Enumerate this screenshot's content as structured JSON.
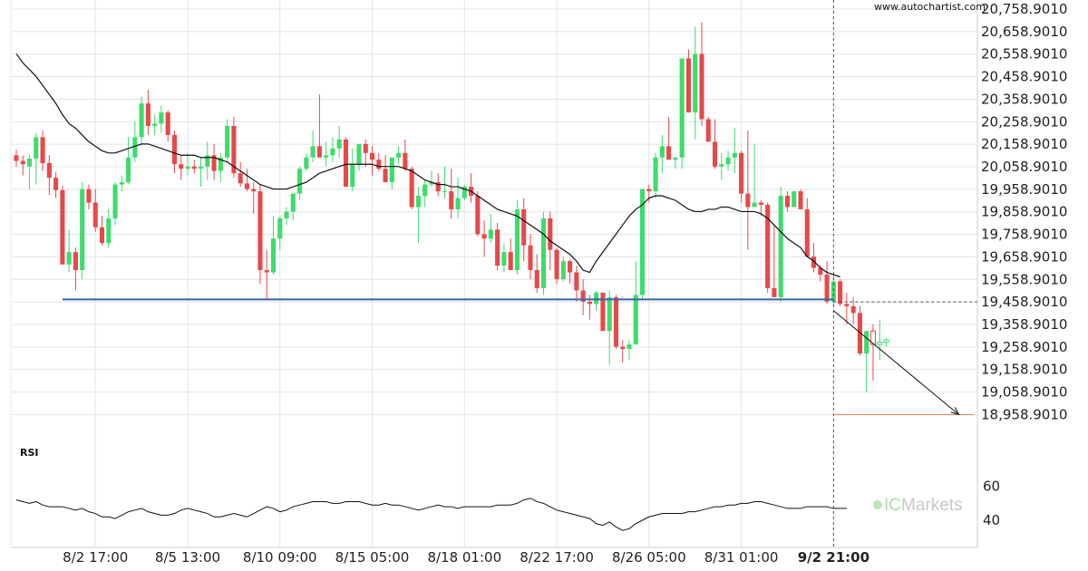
{
  "watermark": "www.autochartist.com",
  "brand": {
    "prefix": "IC",
    "name": "Markets",
    "accent_color": "#8fd98a"
  },
  "colors": {
    "bull": "#3ddc6c",
    "bear": "#e8484a",
    "support_line": "#3a64a8",
    "target_line": "#e07b39",
    "moving_average": "#111111",
    "rsi": "#111111",
    "grid": "#e4e4e4"
  },
  "chart_data": [
    {
      "type": "candlestick",
      "ylim": [
        18884,
        20775
      ],
      "yticks": [
        "20,758.9010",
        "20,658.9010",
        "20,558.9010",
        "20,458.9010",
        "20,358.9010",
        "20,258.9010",
        "20,158.9010",
        "20,058.9010",
        "19,958.9010",
        "19,858.9010",
        "19,758.9010",
        "19,658.9010",
        "19,558.9010",
        "19,458.9010",
        "19,358.9010",
        "19,258.9010",
        "19,158.9010",
        "19,058.9010",
        "18,958.9010"
      ],
      "ytick_values": [
        20758.901,
        20658.901,
        20558.901,
        20458.901,
        20358.901,
        20258.901,
        20158.901,
        20058.901,
        19958.901,
        19858.901,
        19758.901,
        19658.901,
        19558.901,
        19458.901,
        19358.901,
        19258.901,
        19158.901,
        19058.901,
        18958.901
      ],
      "xticks": [
        {
          "label": "8/2 17:00",
          "index": 12,
          "bold": false
        },
        {
          "label": "8/5 13:00",
          "index": 26,
          "bold": false
        },
        {
          "label": "8/10 09:00",
          "index": 40,
          "bold": false
        },
        {
          "label": "8/15 05:00",
          "index": 54,
          "bold": false
        },
        {
          "label": "8/18 01:00",
          "index": 68,
          "bold": false
        },
        {
          "label": "8/22 17:00",
          "index": 82,
          "bold": false
        },
        {
          "label": "8/26 05:00",
          "index": 96,
          "bold": false
        },
        {
          "label": "8/31 01:00",
          "index": 110,
          "bold": false
        },
        {
          "label": "9/2 21:00",
          "index": 124,
          "bold": true
        }
      ],
      "index_range": [
        0,
        145
      ],
      "current_index": 124,
      "candles_ohlc": [
        [
          20110,
          20135,
          20060,
          20085
        ],
        [
          20085,
          20110,
          20020,
          20070
        ],
        [
          20060,
          20110,
          19960,
          20095
        ],
        [
          20095,
          20210,
          19980,
          20190
        ],
        [
          20190,
          20220,
          20040,
          20075
        ],
        [
          20075,
          20110,
          19935,
          20010
        ],
        [
          20010,
          20035,
          19920,
          19955
        ],
        [
          19955,
          19975,
          19630,
          19625
        ],
        [
          19625,
          19780,
          19590,
          19680
        ],
        [
          19680,
          19700,
          19510,
          19600
        ],
        [
          19600,
          19990,
          19560,
          19960
        ],
        [
          19960,
          19980,
          19870,
          19900
        ],
        [
          19900,
          19960,
          19770,
          19790
        ],
        [
          19790,
          19840,
          19710,
          19720
        ],
        [
          19720,
          19870,
          19700,
          19830
        ],
        [
          19830,
          19990,
          19800,
          19980
        ],
        [
          19980,
          20020,
          19950,
          19990
        ],
        [
          19990,
          20190,
          19980,
          20100
        ],
        [
          20100,
          20260,
          20080,
          20190
        ],
        [
          20190,
          20370,
          20150,
          20340
        ],
        [
          20340,
          20400,
          20200,
          20240
        ],
        [
          20240,
          20290,
          20200,
          20250
        ],
        [
          20250,
          20330,
          20210,
          20300
        ],
        [
          20300,
          20310,
          20170,
          20200
        ],
        [
          20200,
          20220,
          20030,
          20070
        ],
        [
          20070,
          20110,
          20000,
          20050
        ],
        [
          20050,
          20120,
          20020,
          20060
        ],
        [
          20060,
          20090,
          20030,
          20050
        ],
        [
          20050,
          20100,
          19970,
          20060
        ],
        [
          20060,
          20170,
          20000,
          20110
        ],
        [
          20110,
          20160,
          20000,
          20040
        ],
        [
          20040,
          20120,
          19990,
          20100
        ],
        [
          20100,
          20270,
          20080,
          20240
        ],
        [
          20240,
          20280,
          20010,
          20030
        ],
        [
          20030,
          20080,
          19970,
          19985
        ],
        [
          19985,
          20050,
          19950,
          19960
        ],
        [
          19960,
          19990,
          19850,
          19950
        ],
        [
          19950,
          19980,
          19540,
          19600
        ],
        [
          19600,
          19690,
          19470,
          19590
        ],
        [
          19590,
          19840,
          19580,
          19740
        ],
        [
          19740,
          19840,
          19690,
          19830
        ],
        [
          19830,
          19880,
          19800,
          19860
        ],
        [
          19860,
          19940,
          19820,
          19940
        ],
        [
          19940,
          20060,
          19910,
          20050
        ],
        [
          20050,
          20120,
          20040,
          20100
        ],
        [
          20100,
          20220,
          20080,
          20150
        ],
        [
          20150,
          20380,
          20110,
          20100
        ],
        [
          20100,
          20170,
          20060,
          20110
        ],
        [
          20110,
          20190,
          20080,
          20140
        ],
        [
          20140,
          20240,
          20100,
          20180
        ],
        [
          20180,
          20190,
          20000,
          19970
        ],
        [
          19970,
          20140,
          19950,
          20070
        ],
        [
          20070,
          20150,
          20040,
          20160
        ],
        [
          20160,
          20180,
          20060,
          20120
        ],
        [
          20120,
          20150,
          20020,
          20090
        ],
        [
          20090,
          20120,
          20040,
          20050
        ],
        [
          20050,
          20110,
          19990,
          19990
        ],
        [
          19990,
          20100,
          19960,
          20100
        ],
        [
          20100,
          20150,
          20070,
          20120
        ],
        [
          20120,
          20180,
          20040,
          20050
        ],
        [
          20050,
          20060,
          19870,
          19880
        ],
        [
          19880,
          19970,
          19720,
          19930
        ],
        [
          19930,
          20000,
          19880,
          19980
        ],
        [
          19980,
          20040,
          19970,
          19990
        ],
        [
          19990,
          20030,
          19930,
          19950
        ],
        [
          19950,
          20060,
          19920,
          19950
        ],
        [
          19950,
          20050,
          19830,
          19870
        ],
        [
          19870,
          20010,
          19830,
          19920
        ],
        [
          19920,
          19980,
          19910,
          19970
        ],
        [
          19970,
          20030,
          19900,
          19930
        ],
        [
          19930,
          19950,
          19750,
          19760
        ],
        [
          19760,
          19820,
          19660,
          19740
        ],
        [
          19740,
          19850,
          19720,
          19780
        ],
        [
          19780,
          19810,
          19600,
          19620
        ],
        [
          19620,
          19720,
          19590,
          19680
        ],
        [
          19680,
          19740,
          19600,
          19600
        ],
        [
          19600,
          19910,
          19580,
          19870
        ],
        [
          19870,
          19920,
          19640,
          19710
        ],
        [
          19710,
          19760,
          19560,
          19600
        ],
        [
          19600,
          19670,
          19500,
          19520
        ],
        [
          19520,
          19860,
          19490,
          19830
        ],
        [
          19830,
          19860,
          19600,
          19690
        ],
        [
          19690,
          19700,
          19540,
          19560
        ],
        [
          19560,
          19660,
          19550,
          19640
        ],
        [
          19640,
          19650,
          19540,
          19590
        ],
        [
          19590,
          19620,
          19460,
          19510
        ],
        [
          19510,
          19560,
          19400,
          19460
        ],
        [
          19460,
          19490,
          19380,
          19450
        ],
        [
          19450,
          19510,
          19420,
          19500
        ],
        [
          19500,
          19500,
          19330,
          19330
        ],
        [
          19330,
          19510,
          19180,
          19480
        ],
        [
          19480,
          19490,
          19250,
          19260
        ],
        [
          19260,
          19290,
          19190,
          19250
        ],
        [
          19250,
          19290,
          19200,
          19270
        ],
        [
          19270,
          19640,
          19460,
          19490
        ],
        [
          19490,
          19960,
          19470,
          19960
        ],
        [
          19960,
          19980,
          19900,
          19950
        ],
        [
          19950,
          20120,
          19920,
          20100
        ],
        [
          20100,
          20200,
          20030,
          20150
        ],
        [
          20150,
          20280,
          20100,
          20090
        ],
        [
          20090,
          20100,
          20050,
          20100
        ],
        [
          20100,
          20340,
          20050,
          20540
        ],
        [
          20540,
          20580,
          20300,
          20300
        ],
        [
          20300,
          20680,
          20180,
          20560
        ],
        [
          20560,
          20700,
          20240,
          20270
        ],
        [
          20270,
          20280,
          20170,
          20170
        ],
        [
          20170,
          20270,
          20050,
          20060
        ],
        [
          20060,
          20120,
          20000,
          20070
        ],
        [
          20070,
          20130,
          20040,
          20100
        ],
        [
          20100,
          20230,
          20030,
          20120
        ],
        [
          20120,
          20130,
          19900,
          19940
        ],
        [
          19940,
          20220,
          19690,
          19880
        ],
        [
          19880,
          20160,
          19890,
          19900
        ],
        [
          19900,
          19910,
          19840,
          19890
        ],
        [
          19890,
          19900,
          19500,
          19520
        ],
        [
          19520,
          19800,
          19500,
          19480
        ],
        [
          19480,
          19970,
          19460,
          19930
        ],
        [
          19930,
          19950,
          19860,
          19880
        ],
        [
          19880,
          19950,
          19880,
          19950
        ],
        [
          19950,
          19960,
          19870,
          19870
        ],
        [
          19870,
          19920,
          19660,
          19660
        ],
        [
          19660,
          19720,
          19590,
          19610
        ],
        [
          19610,
          19620,
          19550,
          19580
        ],
        [
          19580,
          19640,
          19450,
          19460
        ],
        [
          19460,
          19580,
          19440,
          19550
        ],
        [
          19550,
          19560,
          19440,
          19450
        ],
        [
          19450,
          19500,
          19360,
          19440
        ],
        [
          19440,
          19480,
          19360,
          19410
        ],
        [
          19410,
          19440,
          19220,
          19230
        ],
        [
          19230,
          19330,
          19060,
          19330
        ],
        [
          19330,
          19360,
          19110,
          19270
        ],
        [
          19270,
          19380,
          19200,
          19280
        ],
        [
          19280,
          19300,
          19260,
          19290
        ]
      ],
      "moving_average": [
        20560,
        20520,
        20490,
        20460,
        20420,
        20380,
        20340,
        20290,
        20250,
        20230,
        20200,
        20170,
        20150,
        20130,
        20120,
        20120,
        20130,
        20140,
        20150,
        20160,
        20160,
        20150,
        20140,
        20130,
        20120,
        20110,
        20110,
        20110,
        20100,
        20100,
        20100,
        20090,
        20080,
        20060,
        20040,
        20020,
        20000,
        19980,
        19970,
        19960,
        19960,
        19960,
        19970,
        19980,
        19990,
        20010,
        20030,
        20040,
        20050,
        20060,
        20070,
        20070,
        20070,
        20070,
        20070,
        20060,
        20060,
        20060,
        20060,
        20050,
        20040,
        20020,
        20000,
        19990,
        19980,
        19980,
        19970,
        19970,
        19960,
        19950,
        19930,
        19910,
        19890,
        19870,
        19860,
        19850,
        19840,
        19820,
        19800,
        19780,
        19760,
        19730,
        19710,
        19690,
        19670,
        19640,
        19600,
        19590,
        19640,
        19680,
        19720,
        19760,
        19800,
        19840,
        19870,
        19890,
        19920,
        19930,
        19930,
        19920,
        19910,
        19890,
        19870,
        19860,
        19860,
        19870,
        19870,
        19880,
        19880,
        19870,
        19860,
        19860,
        19860,
        19850,
        19830,
        19800,
        19770,
        19740,
        19720,
        19700,
        19660,
        19640,
        19610,
        19590,
        19580,
        19570
      ],
      "ma_start_index": 0,
      "support_level": 19470,
      "support_range": [
        7,
        124
      ],
      "target_level": 18958.9,
      "target_range": [
        124,
        145
      ],
      "forecast_line": [
        [
          124,
          19420
        ],
        [
          143,
          18958.9
        ]
      ],
      "current_price": 19458.9
    },
    {
      "type": "line",
      "title": "RSI",
      "yticks": [
        60,
        40
      ],
      "ylim": [
        25,
        70
      ],
      "index_range": [
        0,
        145
      ],
      "values": [
        52,
        51,
        50,
        51,
        49,
        48,
        48,
        48,
        47,
        46,
        47,
        45,
        44,
        42,
        42,
        41,
        43,
        45,
        46,
        47,
        45,
        44,
        43,
        43,
        44,
        46,
        47,
        46,
        45,
        44,
        42,
        42,
        43,
        44,
        43,
        42,
        44,
        46,
        48,
        47,
        45,
        46,
        48,
        49,
        50,
        51,
        51,
        51,
        50,
        50,
        51,
        51,
        51,
        50,
        49,
        49,
        50,
        49,
        49,
        48,
        47,
        46,
        47,
        48,
        49,
        48,
        48,
        47,
        48,
        48,
        48,
        48,
        48,
        49,
        49,
        49,
        50,
        52,
        53,
        51,
        50,
        48,
        46,
        45,
        44,
        43,
        42,
        41,
        38,
        37,
        39,
        36,
        34,
        35,
        38,
        40,
        42,
        43,
        44,
        44,
        44,
        44,
        45,
        45,
        46,
        47,
        48,
        48,
        49,
        49,
        50,
        50,
        51,
        51,
        50,
        49,
        48,
        47,
        47,
        47,
        48,
        48,
        48,
        48,
        47,
        47,
        47
      ],
      "start_index": 0
    }
  ]
}
